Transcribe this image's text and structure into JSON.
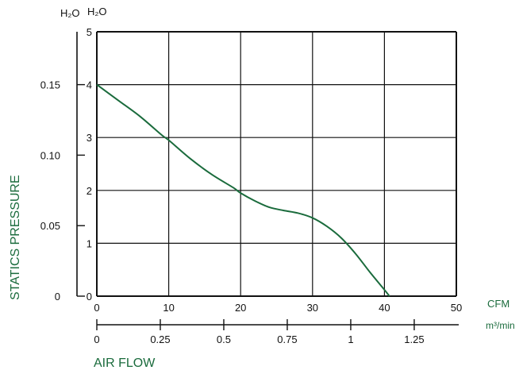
{
  "chart_data": {
    "type": "line",
    "title": "",
    "xlabel": "AIR FLOW",
    "ylabel": "STATICS PRESSURE",
    "x_unit_primary": "CFM",
    "x_unit_secondary": "m³/min",
    "y_unit_primary": "H₂O",
    "y_unit_secondary": "H₂O",
    "xlim": [
      0,
      50
    ],
    "ylim": [
      0,
      5
    ],
    "x_ticks": [
      "0",
      "10",
      "20",
      "30",
      "40",
      "50"
    ],
    "y_ticks": [
      "0",
      "1",
      "2",
      "3",
      "4",
      "5"
    ],
    "x_secondary_ticks": [
      "0",
      "0.25",
      "0.5",
      "0.75",
      "1",
      "1.25"
    ],
    "x_secondary_values": [
      0,
      0.25,
      0.5,
      0.75,
      1,
      1.25
    ],
    "y_secondary_ticks": [
      "0",
      "0.05",
      "0.10",
      "0.15"
    ],
    "y_secondary_values": [
      0,
      0.05,
      0.1,
      0.15
    ],
    "grid": true,
    "series": [
      {
        "x": [
          0,
          3,
          6,
          9,
          10,
          13,
          16,
          19,
          20,
          22,
          24,
          26,
          28,
          30,
          32,
          34,
          36,
          38,
          40,
          40.7
        ],
        "y": [
          4.0,
          3.7,
          3.4,
          3.05,
          2.95,
          2.6,
          2.3,
          2.05,
          1.95,
          1.8,
          1.68,
          1.62,
          1.57,
          1.48,
          1.32,
          1.1,
          0.8,
          0.45,
          0.12,
          0.0
        ]
      }
    ],
    "colors": {
      "curve": "#1a6b3c",
      "axis": "#111111",
      "labels": "#1a6b3c"
    }
  }
}
